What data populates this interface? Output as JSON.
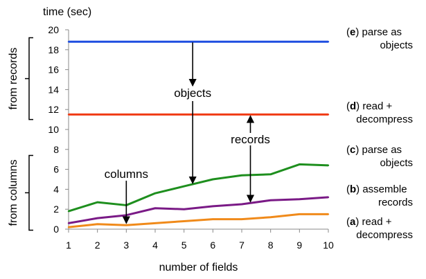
{
  "chart_data": {
    "type": "line",
    "ylabel": "time (sec)",
    "xlabel": "number of fields",
    "x": [
      1,
      2,
      3,
      4,
      5,
      6,
      7,
      8,
      9,
      10
    ],
    "xlim": [
      1,
      10
    ],
    "ylim": [
      0,
      20
    ],
    "yticks": [
      0,
      2,
      4,
      6,
      8,
      10,
      12,
      14,
      16,
      18,
      20
    ],
    "grid": "none",
    "series": [
      {
        "key": "e",
        "color": "#1f4ee0",
        "values": [
          18.8,
          18.8,
          18.8,
          18.8,
          18.8,
          18.8,
          18.8,
          18.8,
          18.8,
          18.8
        ]
      },
      {
        "key": "d",
        "color": "#f03a14",
        "values": [
          11.5,
          11.5,
          11.5,
          11.5,
          11.5,
          11.5,
          11.5,
          11.5,
          11.5,
          11.5
        ]
      },
      {
        "key": "c",
        "color": "#1e8f1e",
        "values": [
          1.8,
          2.7,
          2.4,
          3.6,
          4.3,
          5.0,
          5.4,
          5.5,
          6.5,
          6.4
        ]
      },
      {
        "key": "b",
        "color": "#7a1a86",
        "values": [
          0.6,
          1.1,
          1.4,
          2.1,
          2.0,
          2.3,
          2.5,
          2.9,
          3.0,
          3.2
        ]
      },
      {
        "key": "a",
        "color": "#f08a1a",
        "values": [
          0.2,
          0.5,
          0.4,
          0.6,
          0.8,
          1.0,
          1.0,
          1.2,
          1.5,
          1.5
        ]
      }
    ],
    "legend": [
      {
        "letter": "e",
        "line1": "parse as",
        "line2": "objects"
      },
      {
        "letter": "d",
        "line1": "read +",
        "line2": "decompress"
      },
      {
        "letter": "c",
        "line1": "parse as",
        "line2": "objects"
      },
      {
        "letter": "b",
        "line1": "assemble",
        "line2": "records"
      },
      {
        "letter": "a",
        "line1": "read +",
        "line2": "decompress"
      }
    ],
    "annotations": {
      "objects": "objects",
      "records": "records",
      "columns": "columns"
    },
    "group_labels": {
      "from_records": "from records",
      "from_columns": "from columns"
    }
  }
}
